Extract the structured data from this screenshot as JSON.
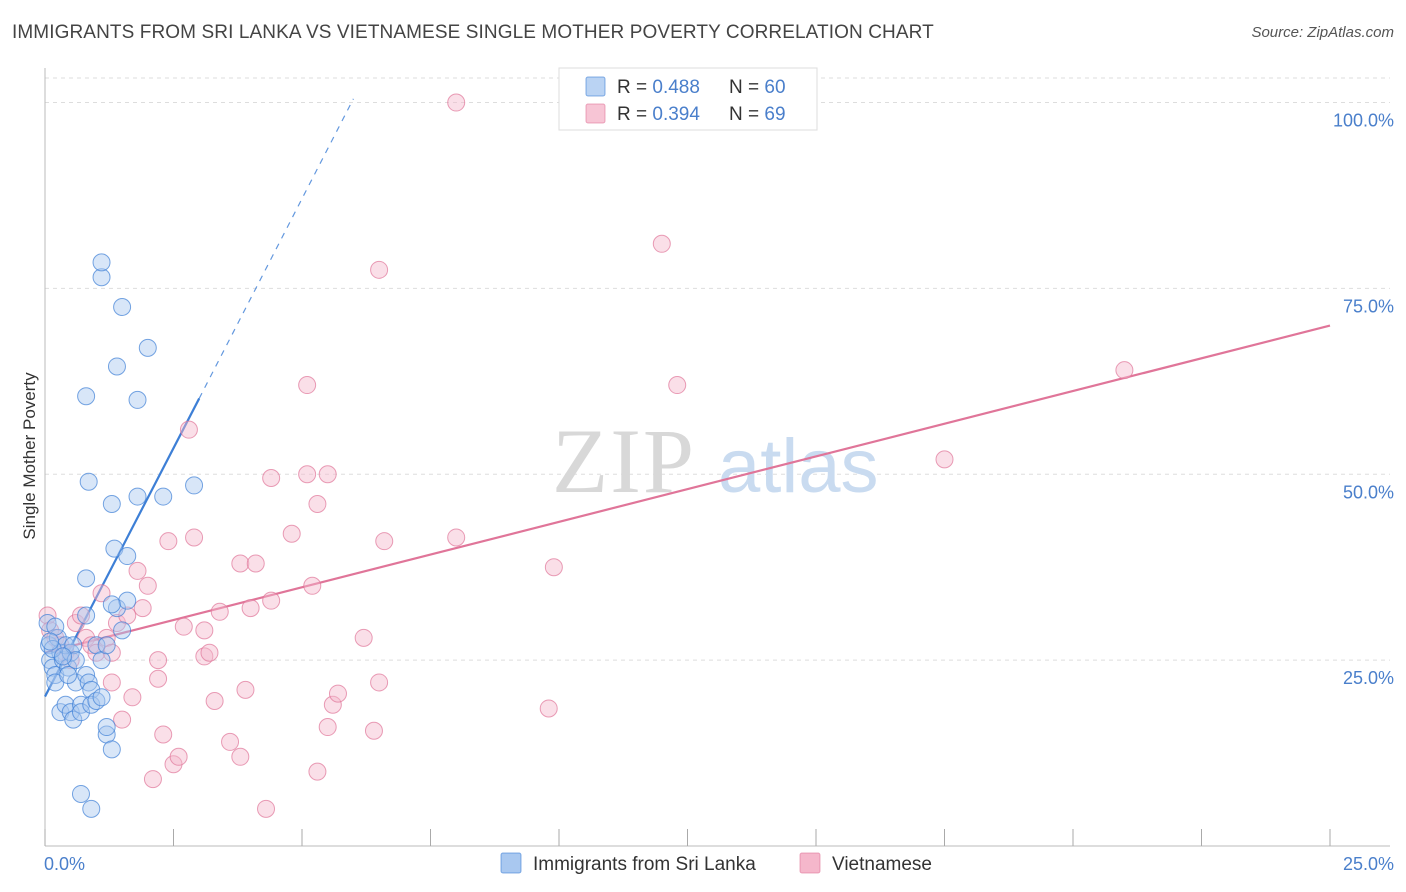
{
  "header": {
    "title": "IMMIGRANTS FROM SRI LANKA VS VIETNAMESE SINGLE MOTHER POVERTY CORRELATION CHART",
    "source": "Source: ZipAtlas.com"
  },
  "watermark": {
    "zip": "ZIP",
    "atlas": "atlas"
  },
  "colors": {
    "blue": "#3d7fd6",
    "blue_fill": "#a9c8f0",
    "pink": "#e07599",
    "pink_fill": "#f5b7cb",
    "axis_text": "#4a7fcb",
    "grid": "#dddddd"
  },
  "legend": {
    "top": [
      {
        "r_label": "R = ",
        "r_value": "0.488",
        "n_label": "N = ",
        "n_value": "60"
      },
      {
        "r_label": "R = ",
        "r_value": "0.394",
        "n_label": "N = ",
        "n_value": "69"
      }
    ],
    "bottom": [
      "Immigrants from Sri Lanka",
      "Vietnamese"
    ]
  },
  "chart_data": {
    "type": "scatter",
    "title": "IMMIGRANTS FROM SRI LANKA VS VIETNAMESE SINGLE MOTHER POVERTY CORRELATION CHART",
    "xlabel": "",
    "ylabel": "Single Mother Poverty",
    "xlim": [
      0,
      25
    ],
    "ylim": [
      0,
      100
    ],
    "x_tick_labels": [
      "0.0%",
      "25.0%"
    ],
    "y_tick_labels": [
      "25.0%",
      "50.0%",
      "75.0%",
      "100.0%"
    ],
    "y_ticks": [
      25,
      50,
      75,
      100
    ],
    "series": [
      {
        "name": "Immigrants from Sri Lanka",
        "color": "blue",
        "r": 0.488,
        "n": 60,
        "trend": {
          "x0": 0,
          "y0": 20.1,
          "x1": 3.0,
          "y1": 60.2,
          "dash_to_x": 6.0,
          "dash_to_y": 100.5
        },
        "points": [
          [
            0.05,
            30
          ],
          [
            0.08,
            27
          ],
          [
            0.1,
            25
          ],
          [
            0.15,
            24
          ],
          [
            0.2,
            23
          ],
          [
            0.2,
            22
          ],
          [
            0.25,
            28
          ],
          [
            0.3,
            26
          ],
          [
            0.35,
            25
          ],
          [
            0.4,
            27
          ],
          [
            0.45,
            24
          ],
          [
            0.5,
            26
          ],
          [
            0.55,
            27
          ],
          [
            0.6,
            25
          ],
          [
            0.3,
            18
          ],
          [
            0.4,
            19
          ],
          [
            0.5,
            18
          ],
          [
            0.55,
            17
          ],
          [
            0.6,
            22
          ],
          [
            0.7,
            19
          ],
          [
            0.7,
            18
          ],
          [
            0.8,
            23
          ],
          [
            0.85,
            22
          ],
          [
            0.9,
            21
          ],
          [
            0.9,
            19
          ],
          [
            1.0,
            19.5
          ],
          [
            1.1,
            20
          ],
          [
            0.8,
            31
          ],
          [
            0.8,
            36
          ],
          [
            1.0,
            27
          ],
          [
            1.1,
            25
          ],
          [
            1.2,
            27
          ],
          [
            1.2,
            15
          ],
          [
            1.3,
            13
          ],
          [
            1.3,
            46
          ],
          [
            1.35,
            40
          ],
          [
            1.4,
            32
          ],
          [
            1.5,
            29
          ],
          [
            1.6,
            33
          ],
          [
            1.6,
            39
          ],
          [
            1.8,
            60
          ],
          [
            1.8,
            47
          ],
          [
            2.0,
            67
          ],
          [
            2.3,
            47
          ],
          [
            2.9,
            48.5
          ],
          [
            0.8,
            60.5
          ],
          [
            1.4,
            64.5
          ],
          [
            1.5,
            72.5
          ],
          [
            1.1,
            76.5
          ],
          [
            1.1,
            78.5
          ],
          [
            0.7,
            7
          ],
          [
            0.9,
            5
          ],
          [
            1.3,
            32.5
          ],
          [
            0.85,
            49
          ],
          [
            0.2,
            29.5
          ],
          [
            0.15,
            26.5
          ],
          [
            0.1,
            27.5
          ],
          [
            0.35,
            25.5
          ],
          [
            0.45,
            23
          ],
          [
            1.2,
            16
          ]
        ]
      },
      {
        "name": "Vietnamese",
        "color": "pink",
        "r": 0.394,
        "n": 69,
        "trend": {
          "x0": 0,
          "y0": 26.0,
          "x1": 25,
          "y1": 70.0
        },
        "points": [
          [
            0.05,
            31
          ],
          [
            0.1,
            29
          ],
          [
            0.2,
            28
          ],
          [
            0.3,
            27
          ],
          [
            0.4,
            26
          ],
          [
            0.5,
            25
          ],
          [
            0.6,
            30
          ],
          [
            0.7,
            31
          ],
          [
            0.8,
            28
          ],
          [
            0.9,
            27
          ],
          [
            1.0,
            26
          ],
          [
            1.1,
            34
          ],
          [
            1.2,
            28
          ],
          [
            1.3,
            26
          ],
          [
            1.3,
            22
          ],
          [
            1.4,
            30
          ],
          [
            1.5,
            17
          ],
          [
            1.6,
            31
          ],
          [
            1.7,
            20
          ],
          [
            1.8,
            37
          ],
          [
            1.9,
            32
          ],
          [
            2.0,
            35
          ],
          [
            2.1,
            9
          ],
          [
            2.2,
            22.5
          ],
          [
            2.2,
            25
          ],
          [
            2.3,
            15
          ],
          [
            2.4,
            41
          ],
          [
            2.5,
            11
          ],
          [
            2.6,
            12
          ],
          [
            2.7,
            29.5
          ],
          [
            2.8,
            56
          ],
          [
            2.9,
            41.5
          ],
          [
            3.1,
            29
          ],
          [
            3.1,
            25.5
          ],
          [
            3.2,
            26
          ],
          [
            3.3,
            19.5
          ],
          [
            3.4,
            31.5
          ],
          [
            3.6,
            14
          ],
          [
            3.8,
            38
          ],
          [
            3.8,
            12
          ],
          [
            3.9,
            21
          ],
          [
            4.0,
            32
          ],
          [
            4.1,
            38
          ],
          [
            4.3,
            5
          ],
          [
            4.4,
            49.5
          ],
          [
            4.4,
            33
          ],
          [
            4.8,
            42
          ],
          [
            5.1,
            50
          ],
          [
            5.1,
            62
          ],
          [
            5.2,
            35
          ],
          [
            5.3,
            46
          ],
          [
            5.3,
            10
          ],
          [
            5.5,
            50
          ],
          [
            5.5,
            16
          ],
          [
            5.6,
            19
          ],
          [
            5.7,
            20.5
          ],
          [
            6.2,
            28
          ],
          [
            6.4,
            15.5
          ],
          [
            6.5,
            22
          ],
          [
            6.6,
            41
          ],
          [
            6.5,
            77.5
          ],
          [
            8.0,
            41.5
          ],
          [
            8.0,
            100
          ],
          [
            9.8,
            18.5
          ],
          [
            9.9,
            37.5
          ],
          [
            12.0,
            81
          ],
          [
            12.3,
            62
          ],
          [
            17.5,
            52
          ],
          [
            21.0,
            64
          ]
        ]
      }
    ]
  }
}
